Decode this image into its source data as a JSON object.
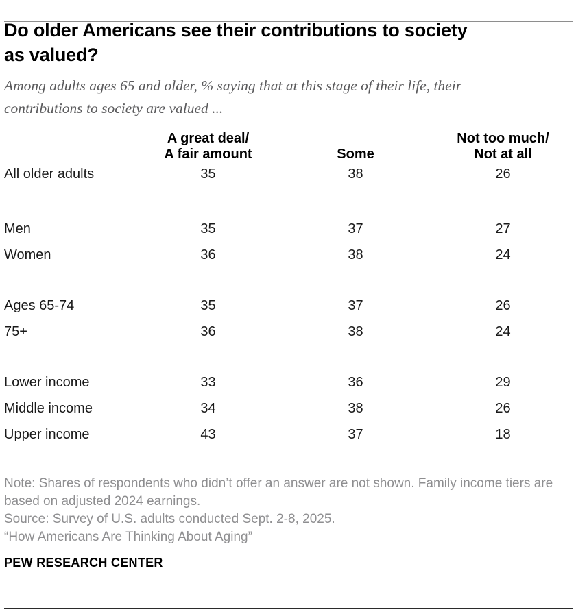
{
  "header": {
    "title": "Do older Americans see their contributions to society\nas valued?",
    "subtitle": "Among adults ages 65 and older, % saying that at this stage of their life, their\ncontributions to society are valued ..."
  },
  "table_display": {
    "col_headers": [
      "A great deal/\nA fair amount",
      "Some",
      "Not too much/\nNot at all"
    ]
  },
  "chart_data": {
    "type": "table",
    "title": "Do older Americans see their contributions to society as valued?",
    "subtitle": "Among adults ages 65 and older, % saying that at this stage of their life, their contributions to society are valued ...",
    "unit": "%",
    "columns": [
      "A great deal/ A fair amount",
      "Some",
      "Not too much/ Not at all"
    ],
    "rows": [
      {
        "label": "All older adults",
        "group": "all",
        "values": [
          35,
          38,
          26
        ]
      },
      {
        "label": "Men",
        "group": "gender",
        "values": [
          35,
          37,
          27
        ]
      },
      {
        "label": "Women",
        "group": "gender",
        "values": [
          36,
          38,
          24
        ]
      },
      {
        "label": "Ages 65-74",
        "group": "age",
        "values": [
          35,
          37,
          26
        ]
      },
      {
        "label": "75+",
        "group": "age",
        "values": [
          36,
          38,
          24
        ]
      },
      {
        "label": "Lower income",
        "group": "income",
        "values": [
          33,
          36,
          29
        ]
      },
      {
        "label": "Middle income",
        "group": "income",
        "values": [
          34,
          38,
          26
        ]
      },
      {
        "label": "Upper income",
        "group": "income",
        "values": [
          43,
          37,
          18
        ]
      }
    ]
  },
  "footer": {
    "note": "Note: Shares of respondents who didn’t offer an answer are not shown. Family income tiers are based on adjusted 2024 earnings.",
    "source": "Source: Survey of U.S. adults conducted Sept. 2-8, 2025.",
    "report": "“How Americans Are Thinking About Aging”",
    "brand": "PEW RESEARCH CENTER"
  }
}
